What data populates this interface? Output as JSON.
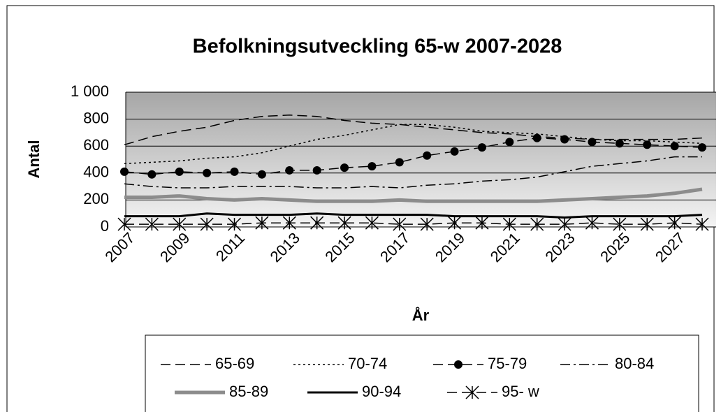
{
  "chart_data": {
    "type": "line",
    "title": "Befolkningsutveckling 65-w 2007-2028",
    "x_label": "År",
    "y_label": "Antal",
    "categories": [
      "2007",
      null,
      "2009",
      null,
      "2011",
      null,
      "2013",
      null,
      "2015",
      null,
      "2017",
      null,
      "2019",
      null,
      "2021",
      null,
      "2023",
      null,
      "2025",
      null,
      "2027",
      null
    ],
    "ylim": [
      0,
      1000
    ],
    "yticks": [
      0,
      200,
      400,
      600,
      800,
      {
        "value": 1000,
        "label": "1 000"
      }
    ],
    "grid": true,
    "legend": "bottom",
    "series": [
      {
        "name": "65-69",
        "color": "#000000",
        "style": "dashed",
        "values": [
          610,
          670,
          710,
          740,
          790,
          820,
          830,
          820,
          790,
          770,
          760,
          740,
          720,
          700,
          690,
          670,
          660,
          650,
          650,
          650,
          650,
          660
        ]
      },
      {
        "name": "70-74",
        "color": "#000000",
        "style": "dotted",
        "values": [
          470,
          480,
          490,
          510,
          520,
          550,
          600,
          650,
          680,
          720,
          760,
          760,
          740,
          710,
          700,
          690,
          670,
          650,
          640,
          640,
          630,
          620
        ]
      },
      {
        "name": "75-79",
        "color": "#000000",
        "style": "dashed-circle",
        "values": [
          410,
          390,
          410,
          400,
          410,
          390,
          420,
          420,
          440,
          450,
          480,
          530,
          560,
          590,
          630,
          660,
          650,
          630,
          620,
          610,
          600,
          590
        ]
      },
      {
        "name": "80-84",
        "color": "#000000",
        "style": "dash-dot",
        "values": [
          320,
          300,
          290,
          290,
          300,
          300,
          300,
          290,
          290,
          300,
          290,
          310,
          320,
          340,
          350,
          370,
          410,
          450,
          470,
          490,
          520,
          520
        ]
      },
      {
        "name": "85-89",
        "color": "#8c8c8c",
        "style": "thick",
        "values": [
          220,
          220,
          230,
          210,
          200,
          210,
          200,
          190,
          190,
          190,
          200,
          190,
          190,
          190,
          190,
          190,
          200,
          210,
          220,
          230,
          250,
          280
        ]
      },
      {
        "name": "90-94",
        "color": "#000000",
        "style": "solid",
        "values": [
          80,
          80,
          80,
          100,
          90,
          90,
          90,
          100,
          90,
          90,
          90,
          90,
          80,
          80,
          80,
          80,
          70,
          80,
          80,
          80,
          80,
          90
        ]
      },
      {
        "name": "95- w",
        "color": "#000000",
        "style": "dashed-star",
        "values": [
          20,
          20,
          20,
          20,
          20,
          30,
          30,
          30,
          30,
          30,
          20,
          20,
          30,
          30,
          20,
          20,
          20,
          30,
          20,
          20,
          30,
          20
        ]
      }
    ]
  }
}
